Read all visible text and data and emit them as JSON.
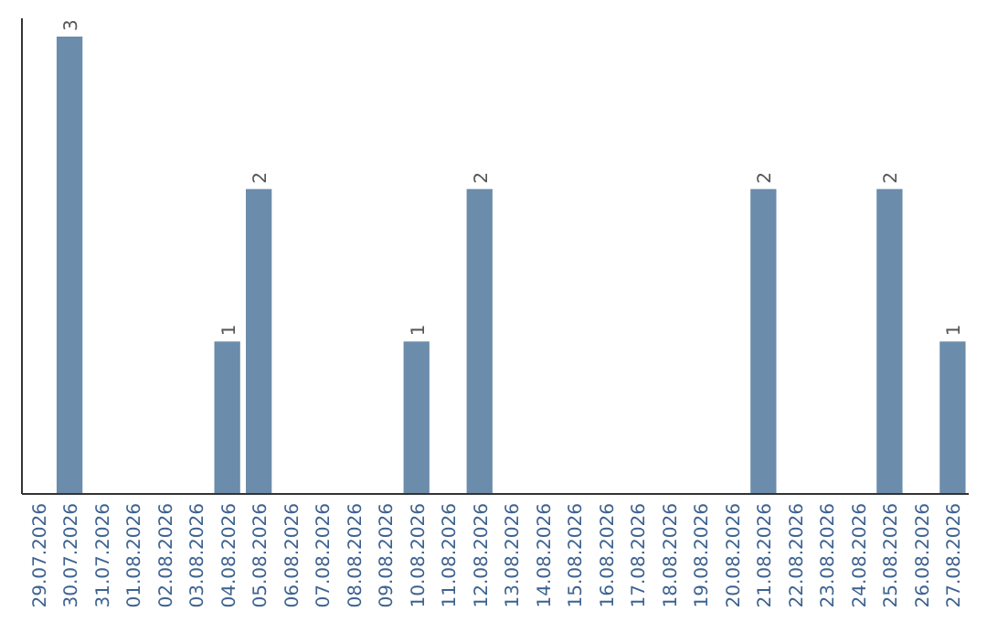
{
  "chart_data": {
    "type": "bar",
    "categories": [
      "29.07.2026",
      "30.07.2026",
      "31.07.2026",
      "01.08.2026",
      "02.08.2026",
      "03.08.2026",
      "04.08.2026",
      "05.08.2026",
      "06.08.2026",
      "07.08.2026",
      "08.08.2026",
      "09.08.2026",
      "10.08.2026",
      "11.08.2026",
      "12.08.2026",
      "13.08.2026",
      "14.08.2026",
      "15.08.2026",
      "16.08.2026",
      "17.08.2026",
      "18.08.2026",
      "19.08.2026",
      "20.08.2026",
      "21.08.2026",
      "22.08.2026",
      "23.08.2026",
      "24.08.2026",
      "25.08.2026",
      "26.08.2026",
      "27.08.2026"
    ],
    "values": [
      0,
      3,
      0,
      0,
      0,
      0,
      1,
      2,
      0,
      0,
      0,
      0,
      1,
      0,
      2,
      0,
      0,
      0,
      0,
      0,
      0,
      0,
      0,
      2,
      0,
      0,
      0,
      2,
      0,
      1
    ],
    "value_labels": [
      null,
      "3",
      null,
      null,
      null,
      null,
      "1",
      "2",
      null,
      null,
      null,
      null,
      "1",
      null,
      "2",
      null,
      null,
      null,
      null,
      null,
      null,
      null,
      null,
      "2",
      null,
      null,
      null,
      "2",
      null,
      "1"
    ],
    "color": "#6b8cab",
    "ylim": [
      0,
      3.12
    ],
    "tick_labels": "x"
  }
}
